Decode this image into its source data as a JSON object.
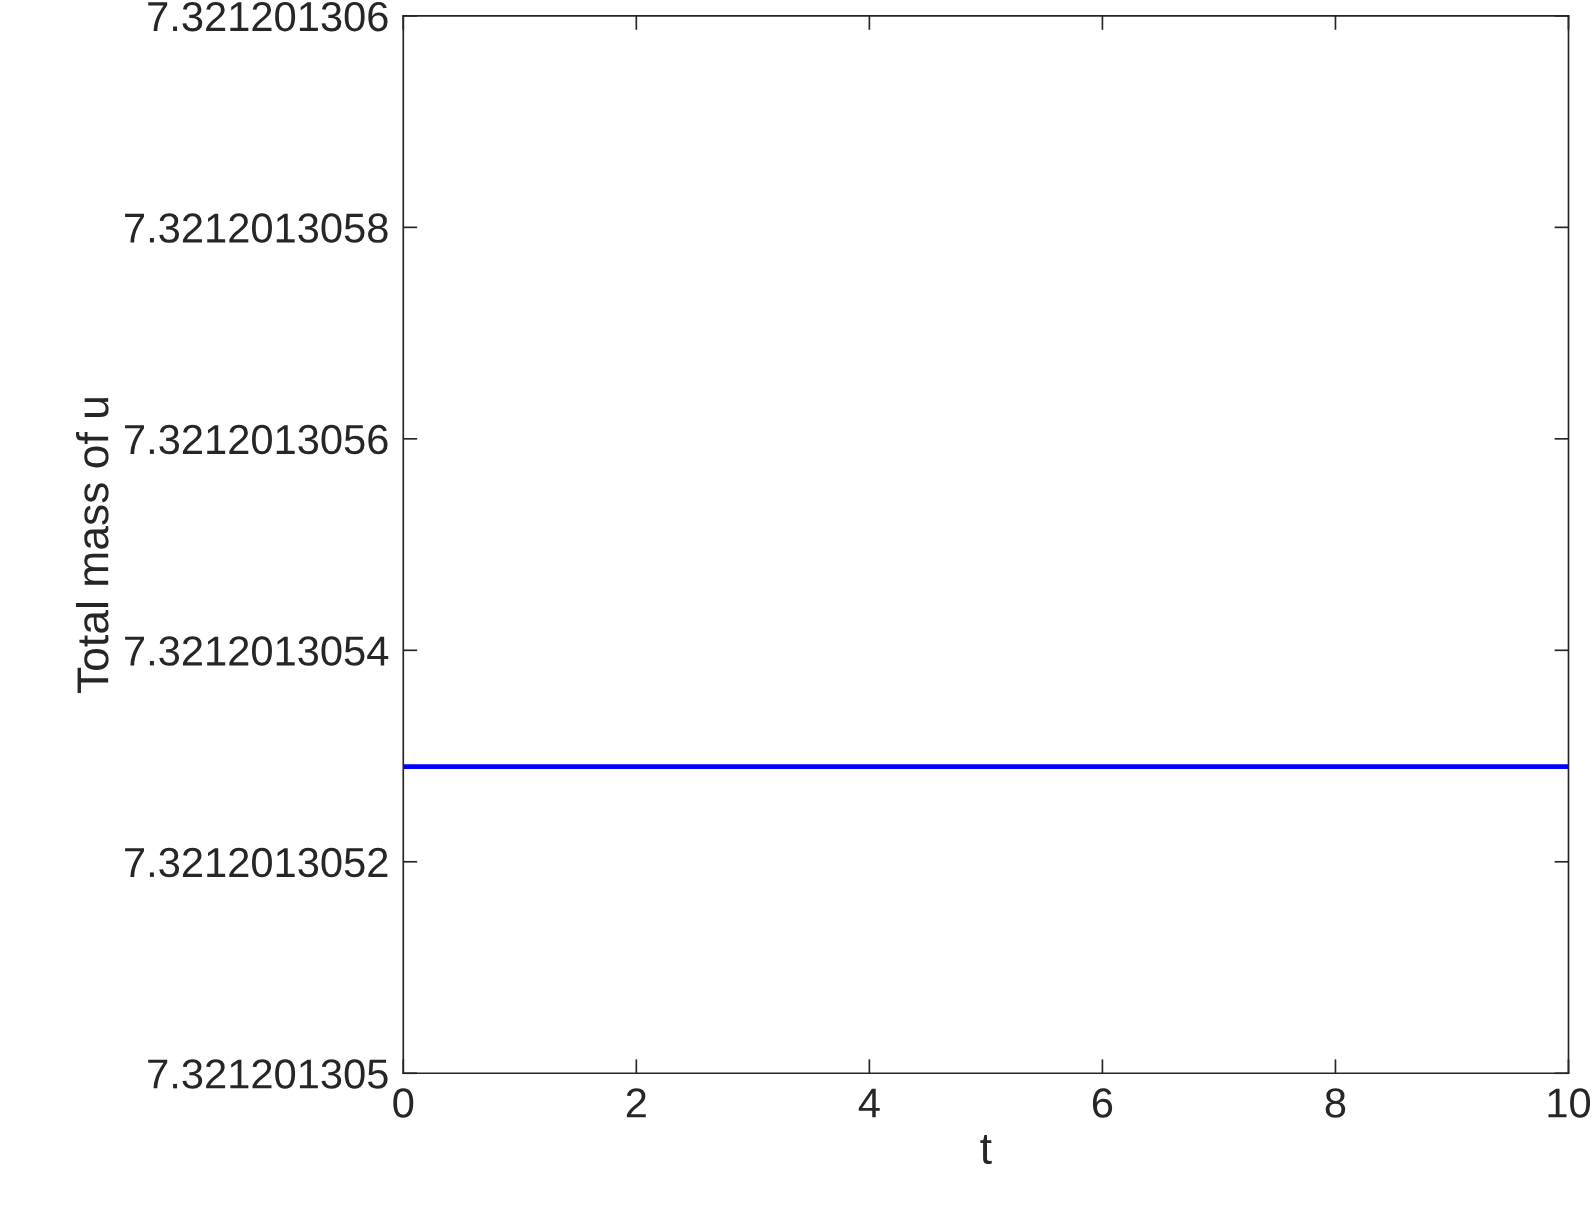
{
  "chart_data": {
    "type": "line",
    "xlabel": "t",
    "ylabel": "Total mass of u",
    "x": [
      0,
      10
    ],
    "series": [
      {
        "color": "#0000ff",
        "values": [
          7.32120130529,
          7.32120130529
        ]
      }
    ],
    "xlim": [
      0,
      10
    ],
    "xticks": [
      0,
      2,
      4,
      6,
      8,
      10
    ],
    "ylim": [
      7.321201305,
      7.321201306
    ],
    "yticks": [
      7.321201305,
      7.3212013052,
      7.3212013054,
      7.3212013056,
      7.3212013058,
      7.321201306
    ],
    "grid": false,
    "legend": false,
    "marker": "none",
    "line_style": "solid"
  }
}
